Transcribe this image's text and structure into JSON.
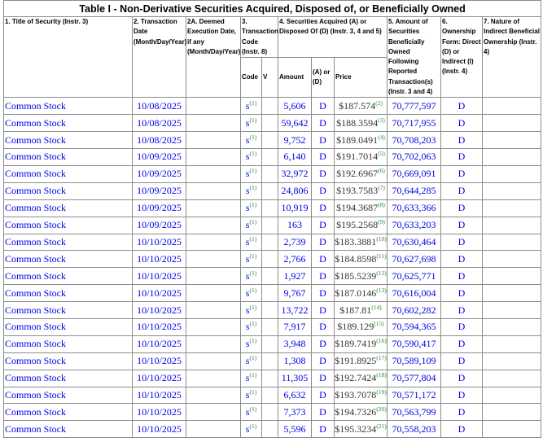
{
  "table": {
    "title": "Table I - Non-Derivative Securities Acquired, Disposed of, or Beneficially Owned",
    "headers": {
      "col1": "1. Title of Security (Instr. 3)",
      "col2": "2. Transaction Date (Month/Day/Year)",
      "col2a": "2A. Deemed Execution Date, if any (Month/Day/Year)",
      "col3": "3. Transaction Code (Instr. 8)",
      "col4": "4. Securities Acquired (A) or Disposed Of (D) (Instr. 3, 4 and 5)",
      "col5": "5. Amount of Securities Beneficially Owned Following Reported Transaction(s) (Instr. 3 and 4)",
      "col6": "6. Ownership Form: Direct (D) or Indirect (I) (Instr. 4)",
      "col7": "7. Nature of Indirect Beneficial Ownership (Instr. 4)",
      "code": "Code",
      "v": "V",
      "amount": "Amount",
      "a_or_d": "(A) or (D)",
      "price": "Price"
    },
    "rows": [
      {
        "security": "Common Stock",
        "date": "10/08/2025",
        "code": "S",
        "code_fn": "(1)",
        "amount": "5,606",
        "ad": "D",
        "price": "$187.574",
        "price_fn": "(2)",
        "owned": "70,777,597",
        "form": "D"
      },
      {
        "security": "Common Stock",
        "date": "10/08/2025",
        "code": "S",
        "code_fn": "(1)",
        "amount": "59,642",
        "ad": "D",
        "price": "$188.3594",
        "price_fn": "(3)",
        "owned": "70,717,955",
        "form": "D"
      },
      {
        "security": "Common Stock",
        "date": "10/08/2025",
        "code": "S",
        "code_fn": "(1)",
        "amount": "9,752",
        "ad": "D",
        "price": "$189.0491",
        "price_fn": "(4)",
        "owned": "70,708,203",
        "form": "D"
      },
      {
        "security": "Common Stock",
        "date": "10/09/2025",
        "code": "S",
        "code_fn": "(1)",
        "amount": "6,140",
        "ad": "D",
        "price": "$191.7014",
        "price_fn": "(5)",
        "owned": "70,702,063",
        "form": "D"
      },
      {
        "security": "Common Stock",
        "date": "10/09/2025",
        "code": "S",
        "code_fn": "(1)",
        "amount": "32,972",
        "ad": "D",
        "price": "$192.6967",
        "price_fn": "(6)",
        "owned": "70,669,091",
        "form": "D"
      },
      {
        "security": "Common Stock",
        "date": "10/09/2025",
        "code": "S",
        "code_fn": "(1)",
        "amount": "24,806",
        "ad": "D",
        "price": "$193.7583",
        "price_fn": "(7)",
        "owned": "70,644,285",
        "form": "D"
      },
      {
        "security": "Common Stock",
        "date": "10/09/2025",
        "code": "S",
        "code_fn": "(1)",
        "amount": "10,919",
        "ad": "D",
        "price": "$194.3687",
        "price_fn": "(8)",
        "owned": "70,633,366",
        "form": "D"
      },
      {
        "security": "Common Stock",
        "date": "10/09/2025",
        "code": "S",
        "code_fn": "(1)",
        "amount": "163",
        "ad": "D",
        "price": "$195.2568",
        "price_fn": "(9)",
        "owned": "70,633,203",
        "form": "D"
      },
      {
        "security": "Common Stock",
        "date": "10/10/2025",
        "code": "S",
        "code_fn": "(1)",
        "amount": "2,739",
        "ad": "D",
        "price": "$183.3881",
        "price_fn": "(10)",
        "owned": "70,630,464",
        "form": "D"
      },
      {
        "security": "Common Stock",
        "date": "10/10/2025",
        "code": "S",
        "code_fn": "(1)",
        "amount": "2,766",
        "ad": "D",
        "price": "$184.8598",
        "price_fn": "(11)",
        "owned": "70,627,698",
        "form": "D"
      },
      {
        "security": "Common Stock",
        "date": "10/10/2025",
        "code": "S",
        "code_fn": "(1)",
        "amount": "1,927",
        "ad": "D",
        "price": "$185.5239",
        "price_fn": "(12)",
        "owned": "70,625,771",
        "form": "D"
      },
      {
        "security": "Common Stock",
        "date": "10/10/2025",
        "code": "S",
        "code_fn": "(1)",
        "amount": "9,767",
        "ad": "D",
        "price": "$187.0146",
        "price_fn": "(13)",
        "owned": "70,616,004",
        "form": "D"
      },
      {
        "security": "Common Stock",
        "date": "10/10/2025",
        "code": "S",
        "code_fn": "(1)",
        "amount": "13,722",
        "ad": "D",
        "price": "$187.81",
        "price_fn": "(14)",
        "owned": "70,602,282",
        "form": "D"
      },
      {
        "security": "Common Stock",
        "date": "10/10/2025",
        "code": "S",
        "code_fn": "(1)",
        "amount": "7,917",
        "ad": "D",
        "price": "$189.129",
        "price_fn": "(15)",
        "owned": "70,594,365",
        "form": "D"
      },
      {
        "security": "Common Stock",
        "date": "10/10/2025",
        "code": "S",
        "code_fn": "(1)",
        "amount": "3,948",
        "ad": "D",
        "price": "$189.7419",
        "price_fn": "(16)",
        "owned": "70,590,417",
        "form": "D"
      },
      {
        "security": "Common Stock",
        "date": "10/10/2025",
        "code": "S",
        "code_fn": "(1)",
        "amount": "1,308",
        "ad": "D",
        "price": "$191.8925",
        "price_fn": "(17)",
        "owned": "70,589,109",
        "form": "D"
      },
      {
        "security": "Common Stock",
        "date": "10/10/2025",
        "code": "S",
        "code_fn": "(1)",
        "amount": "11,305",
        "ad": "D",
        "price": "$192.7424",
        "price_fn": "(18)",
        "owned": "70,577,804",
        "form": "D"
      },
      {
        "security": "Common Stock",
        "date": "10/10/2025",
        "code": "S",
        "code_fn": "(1)",
        "amount": "6,632",
        "ad": "D",
        "price": "$193.7078",
        "price_fn": "(19)",
        "owned": "70,571,172",
        "form": "D"
      },
      {
        "security": "Common Stock",
        "date": "10/10/2025",
        "code": "S",
        "code_fn": "(1)",
        "amount": "7,373",
        "ad": "D",
        "price": "$194.7326",
        "price_fn": "(20)",
        "owned": "70,563,799",
        "form": "D"
      },
      {
        "security": "Common Stock",
        "date": "10/10/2025",
        "code": "S",
        "code_fn": "(1)",
        "amount": "5,596",
        "ad": "D",
        "price": "$195.3234",
        "price_fn": "(21)",
        "owned": "70,558,203",
        "form": "D"
      }
    ]
  }
}
